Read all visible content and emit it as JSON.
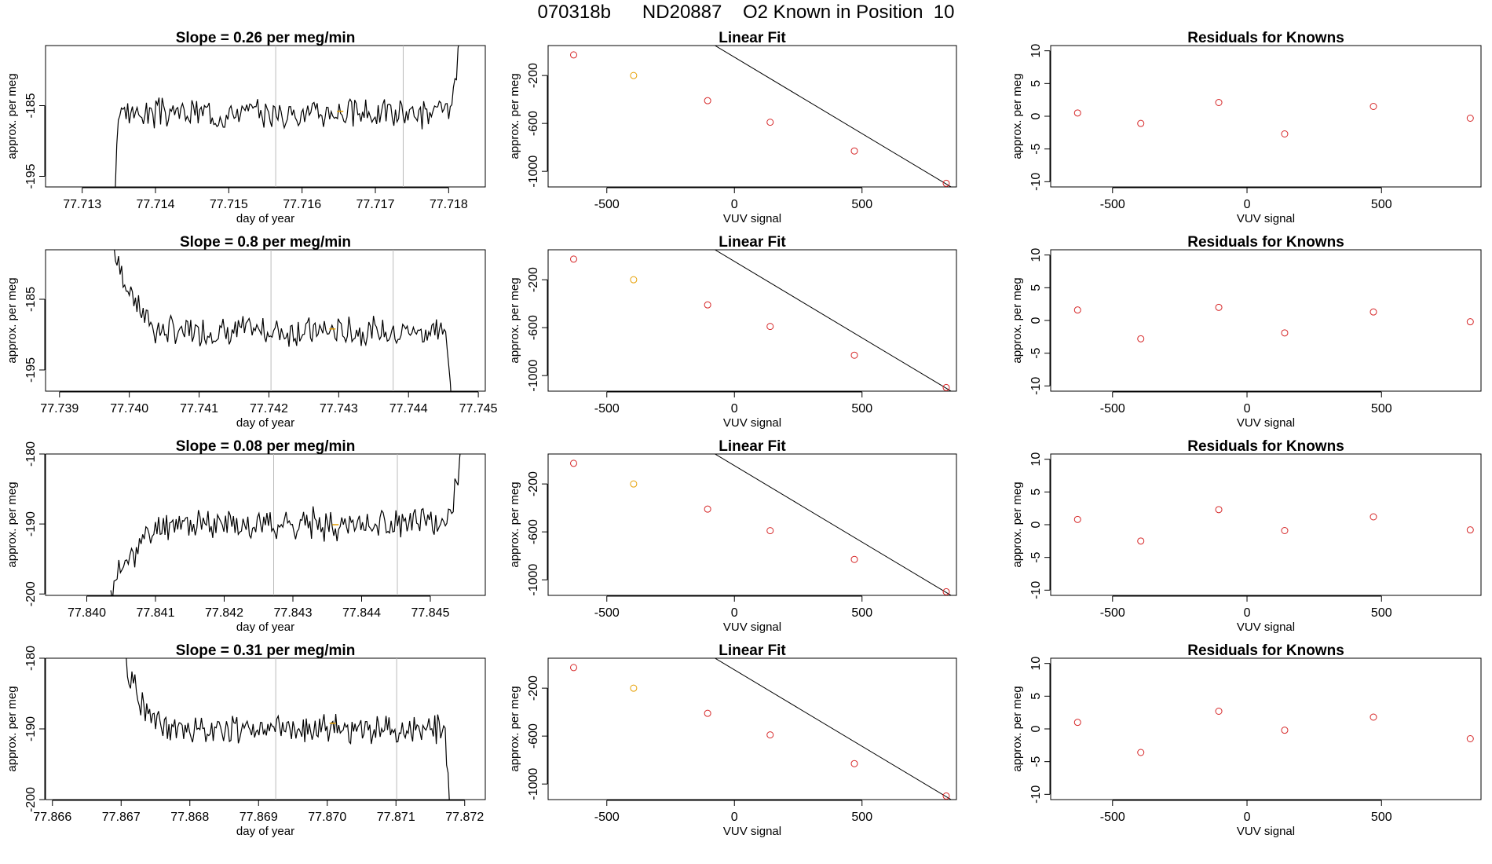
{
  "figure": {
    "title": "070318b      ND20887    O2 Known in Position  10",
    "colors": {
      "line": "#000000",
      "known": "#e69f00",
      "residual": "#d62728",
      "vline": "#bbbbbb"
    }
  },
  "chart_data": [
    {
      "type": "line",
      "panel": "trace",
      "row": 0,
      "title": "Slope =  0.26  per meg/min",
      "xlabel": "day of year",
      "ylabel": "approx. per meg",
      "xlim": [
        77.7125,
        77.7185
      ],
      "ylim": [
        -196.5,
        -176.5
      ],
      "xticks": [
        77.713,
        77.714,
        77.715,
        77.716,
        77.717,
        77.718
      ],
      "xtick_labels": [
        "77.713",
        "77.714",
        "77.715",
        "77.716",
        "77.717",
        "77.718"
      ],
      "yticks": [
        -195,
        -185
      ],
      "ytick_labels": [
        "-195",
        "-185"
      ],
      "vlines": [
        77.71564,
        77.71738
      ],
      "start_x": 77.71345,
      "end_x": 77.71815,
      "start_y": -197,
      "plateau_start_x": 77.7135,
      "plateau_y": -186,
      "plateau_end_x": 77.718,
      "end_y": -175,
      "noise": 1.6,
      "seed": 3,
      "known_marker": {
        "x": 77.71652,
        "y": -185.8
      }
    },
    {
      "type": "line",
      "panel": "trace",
      "row": 1,
      "title": "Slope =  0.8  per meg/min",
      "xlabel": "day of year",
      "ylabel": "approx. per meg",
      "xlim": [
        77.7388,
        77.7451
      ],
      "ylim": [
        -198,
        -178
      ],
      "xticks": [
        77.739,
        77.74,
        77.741,
        77.742,
        77.743,
        77.744,
        77.745
      ],
      "xtick_labels": [
        "77.739",
        "77.740",
        "77.741",
        "77.742",
        "77.743",
        "77.744",
        "77.745"
      ],
      "yticks": [
        -195,
        -185
      ],
      "ytick_labels": [
        "-195",
        "-185"
      ],
      "vlines": [
        77.74203,
        77.74378
      ],
      "start_x": 77.73978,
      "end_x": 77.74462,
      "start_y": -177,
      "plateau_start_x": 77.7404,
      "plateau_y": -189.5,
      "plateau_end_x": 77.7445,
      "end_y": -199,
      "noise": 1.6,
      "seed": 7,
      "known_marker": {
        "x": 77.74291,
        "y": -189.2
      }
    },
    {
      "type": "line",
      "panel": "trace",
      "row": 2,
      "title": "Slope =  0.08  per meg/min",
      "xlabel": "day of year",
      "ylabel": "approx. per meg",
      "xlim": [
        77.8394,
        77.8458
      ],
      "ylim": [
        -200.2,
        -180
      ],
      "xticks": [
        77.84,
        77.841,
        77.842,
        77.843,
        77.844,
        77.845
      ],
      "xtick_labels": [
        "77.840",
        "77.841",
        "77.842",
        "77.843",
        "77.844",
        "77.845"
      ],
      "yticks": [
        -200,
        -190,
        -180
      ],
      "ytick_labels": [
        "-200",
        "-190",
        "-180"
      ],
      "vlines": [
        77.84272,
        77.84452
      ],
      "start_x": 77.84035,
      "end_x": 77.84545,
      "start_y": -200.5,
      "plateau_start_x": 77.8411,
      "plateau_y": -190,
      "plateau_end_x": 77.8452,
      "end_y": -179.5,
      "noise": 1.7,
      "seed": 11,
      "known_marker": {
        "x": 77.84362,
        "y": -190.1
      }
    },
    {
      "type": "line",
      "panel": "trace",
      "row": 3,
      "title": "Slope =  0.31  per meg/min",
      "xlabel": "day of year",
      "ylabel": "approx. per meg",
      "xlim": [
        77.8659,
        77.8723
      ],
      "ylim": [
        -200,
        -180
      ],
      "xticks": [
        77.866,
        77.867,
        77.868,
        77.869,
        77.87,
        77.871,
        77.872
      ],
      "xtick_labels": [
        "77.866",
        "77.867",
        "77.868",
        "77.869",
        "77.870",
        "77.871",
        "77.872"
      ],
      "yticks": [
        -200,
        -190,
        -180
      ],
      "ytick_labels": [
        "-200",
        "-190",
        "-180"
      ],
      "vlines": [
        77.86925,
        77.87101
      ],
      "start_x": 77.86705,
      "end_x": 77.87178,
      "start_y": -179.5,
      "plateau_start_x": 77.8676,
      "plateau_y": -190,
      "plateau_end_x": 77.8717,
      "end_y": -200.5,
      "noise": 1.6,
      "seed": 19,
      "known_marker": {
        "x": 77.87008,
        "y": -189.2
      }
    },
    {
      "type": "scatter",
      "panel": "fit",
      "row": 0,
      "title": "Linear Fit",
      "xlabel": "VUV signal",
      "ylabel": "approx. per meg",
      "xlim": [
        -730,
        870
      ],
      "ylim": [
        -1130,
        50
      ],
      "xticks": [
        -500,
        0,
        500
      ],
      "xtick_labels": [
        "-500",
        "0",
        "500"
      ],
      "yticks": [
        -1000,
        -600,
        -200
      ],
      "ytick_labels": [
        "-1000",
        "-600",
        "-200"
      ],
      "fit_line": {
        "slope": -1.2757,
        "intercept": -47
      },
      "points": [
        {
          "x": -630,
          "y": -28
        },
        {
          "x": -395,
          "y": -200,
          "known": true
        },
        {
          "x": -105,
          "y": -410
        },
        {
          "x": 140,
          "y": -590
        },
        {
          "x": 470,
          "y": -830
        },
        {
          "x": 830,
          "y": -1100
        }
      ]
    },
    {
      "type": "scatter",
      "panel": "fit",
      "row": 1,
      "title": "Linear Fit",
      "xlabel": "VUV signal",
      "ylabel": "approx. per meg",
      "xlim": [
        -730,
        870
      ],
      "ylim": [
        -1130,
        50
      ],
      "xticks": [
        -500,
        0,
        500
      ],
      "xtick_labels": [
        "-500",
        "0",
        "500"
      ],
      "yticks": [
        -1000,
        -600,
        -200
      ],
      "ytick_labels": [
        "-1000",
        "-600",
        "-200"
      ],
      "fit_line": {
        "slope": -1.2757,
        "intercept": -47
      },
      "points": [
        {
          "x": -630,
          "y": -28
        },
        {
          "x": -395,
          "y": -200,
          "known": true
        },
        {
          "x": -105,
          "y": -410
        },
        {
          "x": 140,
          "y": -590
        },
        {
          "x": 470,
          "y": -830
        },
        {
          "x": 830,
          "y": -1100
        }
      ]
    },
    {
      "type": "scatter",
      "panel": "fit",
      "row": 2,
      "title": "Linear Fit",
      "xlabel": "VUV signal",
      "ylabel": "approx. per meg",
      "xlim": [
        -730,
        870
      ],
      "ylim": [
        -1130,
        50
      ],
      "xticks": [
        -500,
        0,
        500
      ],
      "xtick_labels": [
        "-500",
        "0",
        "500"
      ],
      "yticks": [
        -1000,
        -600,
        -200
      ],
      "ytick_labels": [
        "-1000",
        "-600",
        "-200"
      ],
      "fit_line": {
        "slope": -1.2757,
        "intercept": -47
      },
      "points": [
        {
          "x": -630,
          "y": -28
        },
        {
          "x": -395,
          "y": -200,
          "known": true
        },
        {
          "x": -105,
          "y": -410
        },
        {
          "x": 140,
          "y": -590
        },
        {
          "x": 470,
          "y": -830
        },
        {
          "x": 830,
          "y": -1100
        }
      ]
    },
    {
      "type": "scatter",
      "panel": "fit",
      "row": 3,
      "title": "Linear Fit",
      "xlabel": "VUV signal",
      "ylabel": "approx. per meg",
      "xlim": [
        -730,
        870
      ],
      "ylim": [
        -1130,
        50
      ],
      "xticks": [
        -500,
        0,
        500
      ],
      "xtick_labels": [
        "-500",
        "0",
        "500"
      ],
      "yticks": [
        -1000,
        -600,
        -200
      ],
      "ytick_labels": [
        "-1000",
        "-600",
        "-200"
      ],
      "fit_line": {
        "slope": -1.2757,
        "intercept": -47
      },
      "points": [
        {
          "x": -630,
          "y": -28
        },
        {
          "x": -395,
          "y": -200,
          "known": true
        },
        {
          "x": -105,
          "y": -410
        },
        {
          "x": 140,
          "y": -590
        },
        {
          "x": 470,
          "y": -830
        },
        {
          "x": 830,
          "y": -1100
        }
      ]
    },
    {
      "type": "scatter",
      "panel": "residuals",
      "row": 0,
      "title": "Residuals for Knowns",
      "xlabel": "VUV signal",
      "ylabel": "approx. per meg",
      "xlim": [
        -730,
        870
      ],
      "ylim": [
        -10.8,
        10.8
      ],
      "xticks": [
        -500,
        0,
        500
      ],
      "xtick_labels": [
        "-500",
        "0",
        "500"
      ],
      "yticks": [
        -10,
        -5,
        0,
        5,
        10
      ],
      "ytick_labels": [
        "-10",
        "-5",
        "0",
        "5",
        "10"
      ],
      "points": [
        {
          "x": -630,
          "y": 0.5
        },
        {
          "x": -395,
          "y": -1.1
        },
        {
          "x": -105,
          "y": 2.1
        },
        {
          "x": 140,
          "y": -2.7
        },
        {
          "x": 470,
          "y": 1.5
        },
        {
          "x": 830,
          "y": -0.3
        }
      ]
    },
    {
      "type": "scatter",
      "panel": "residuals",
      "row": 1,
      "title": "Residuals for Knowns",
      "xlabel": "VUV signal",
      "ylabel": "approx. per meg",
      "xlim": [
        -730,
        870
      ],
      "ylim": [
        -10.8,
        10.8
      ],
      "xticks": [
        -500,
        0,
        500
      ],
      "xtick_labels": [
        "-500",
        "0",
        "500"
      ],
      "yticks": [
        -10,
        -5,
        0,
        5,
        10
      ],
      "ytick_labels": [
        "-10",
        "-5",
        "0",
        "5",
        "10"
      ],
      "points": [
        {
          "x": -630,
          "y": 1.6
        },
        {
          "x": -395,
          "y": -2.8
        },
        {
          "x": -105,
          "y": 2.0
        },
        {
          "x": 140,
          "y": -1.9
        },
        {
          "x": 470,
          "y": 1.3
        },
        {
          "x": 830,
          "y": -0.2
        }
      ]
    },
    {
      "type": "scatter",
      "panel": "residuals",
      "row": 2,
      "title": "Residuals for Knowns",
      "xlabel": "VUV signal",
      "ylabel": "approx. per meg",
      "xlim": [
        -730,
        870
      ],
      "ylim": [
        -10.8,
        10.8
      ],
      "xticks": [
        -500,
        0,
        500
      ],
      "xtick_labels": [
        "-500",
        "0",
        "500"
      ],
      "yticks": [
        -10,
        -5,
        0,
        5,
        10
      ],
      "ytick_labels": [
        "-10",
        "-5",
        "0",
        "5",
        "10"
      ],
      "points": [
        {
          "x": -630,
          "y": 0.8
        },
        {
          "x": -395,
          "y": -2.5
        },
        {
          "x": -105,
          "y": 2.3
        },
        {
          "x": 140,
          "y": -0.9
        },
        {
          "x": 470,
          "y": 1.2
        },
        {
          "x": 830,
          "y": -0.8
        }
      ]
    },
    {
      "type": "scatter",
      "panel": "residuals",
      "row": 3,
      "title": "Residuals for Knowns",
      "xlabel": "VUV signal",
      "ylabel": "approx. per meg",
      "xlim": [
        -730,
        870
      ],
      "ylim": [
        -10.8,
        10.8
      ],
      "xticks": [
        -500,
        0,
        500
      ],
      "xtick_labels": [
        "-500",
        "0",
        "500"
      ],
      "yticks": [
        -10,
        -5,
        0,
        5,
        10
      ],
      "ytick_labels": [
        "-10",
        "-5",
        "0",
        "5",
        "10"
      ],
      "points": [
        {
          "x": -630,
          "y": 1.0
        },
        {
          "x": -395,
          "y": -3.6
        },
        {
          "x": -105,
          "y": 2.7
        },
        {
          "x": 140,
          "y": -0.2
        },
        {
          "x": 470,
          "y": 1.8
        },
        {
          "x": 830,
          "y": -1.5
        }
      ]
    }
  ]
}
